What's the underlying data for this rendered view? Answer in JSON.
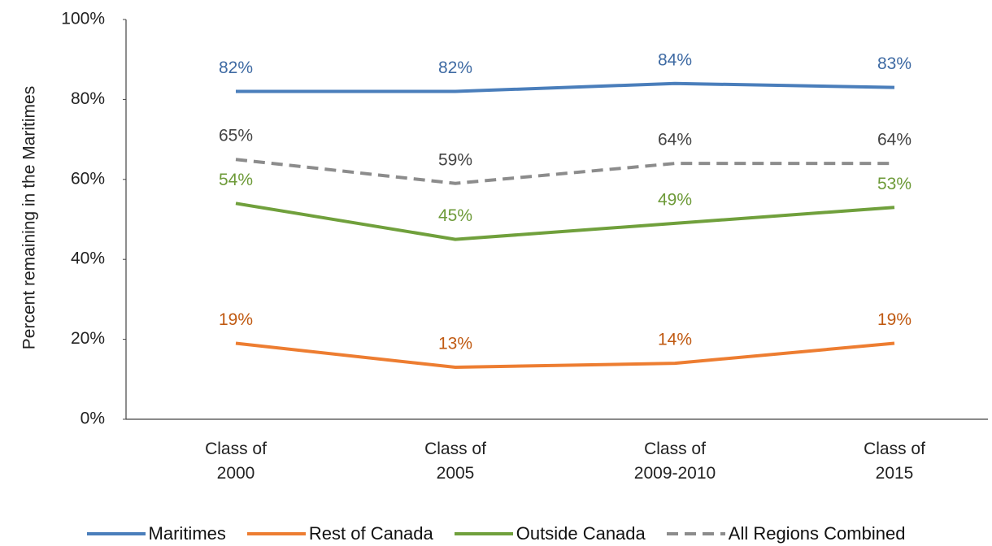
{
  "chart_data": {
    "type": "line",
    "y_label": "Percent remaining in the Maritimes",
    "categories": [
      "Class of 2000",
      "Class of 2005",
      "Class of 2009-2010",
      "Class of 2015"
    ],
    "series": [
      {
        "name": "Maritimes",
        "color": "#4a7ebb",
        "label_color": "#3e6aa3",
        "dashed": false,
        "values": [
          82,
          82,
          84,
          83
        ],
        "value_labels": [
          "82%",
          "82%",
          "84%",
          "83%"
        ]
      },
      {
        "name": "Rest of Canada",
        "color": "#ed7d31",
        "label_color": "#c05a12",
        "dashed": false,
        "values": [
          19,
          13,
          14,
          19
        ],
        "value_labels": [
          "19%",
          "13%",
          "14%",
          "19%"
        ]
      },
      {
        "name": "Outside Canada",
        "color": "#70a03c",
        "label_color": "#6d9a38",
        "dashed": false,
        "values": [
          54,
          45,
          49,
          53
        ],
        "value_labels": [
          "54%",
          "45%",
          "49%",
          "53%"
        ]
      },
      {
        "name": "All Regions Combined",
        "color": "#8c8c8c",
        "label_color": "#444444",
        "dashed": true,
        "values": [
          65,
          59,
          64,
          64
        ],
        "value_labels": [
          "65%",
          "59%",
          "64%",
          "64%"
        ]
      }
    ],
    "ylim": [
      0,
      100
    ],
    "yticks": [
      {
        "value": 0,
        "label": "0%"
      },
      {
        "value": 20,
        "label": "20%"
      },
      {
        "value": 40,
        "label": "40%"
      },
      {
        "value": 60,
        "label": "60%"
      },
      {
        "value": 80,
        "label": "80%"
      },
      {
        "value": 100,
        "label": "100%"
      }
    ],
    "legend": "bottom"
  }
}
